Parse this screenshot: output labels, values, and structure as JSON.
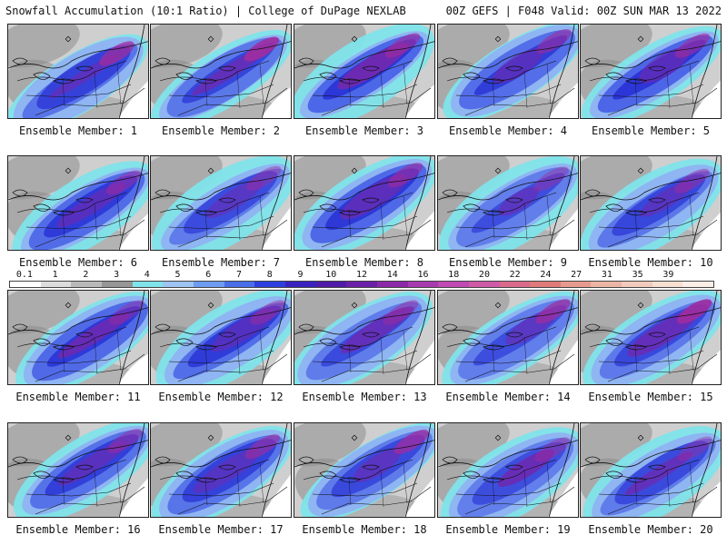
{
  "header": {
    "title_left": "Snowfall Accumulation (10:1 Ratio) | College of DuPage NEXLAB",
    "title_right": "00Z GEFS | F048 Valid: 00Z SUN MAR 13 2022"
  },
  "panels": [
    {
      "label": "Ensemble Member: 1"
    },
    {
      "label": "Ensemble Member: 2"
    },
    {
      "label": "Ensemble Member: 3"
    },
    {
      "label": "Ensemble Member: 4"
    },
    {
      "label": "Ensemble Member: 5"
    },
    {
      "label": "Ensemble Member: 6"
    },
    {
      "label": "Ensemble Member: 7"
    },
    {
      "label": "Ensemble Member: 8"
    },
    {
      "label": "Ensemble Member: 9"
    },
    {
      "label": "Ensemble Member: 10"
    },
    {
      "label": "Ensemble Member: 11"
    },
    {
      "label": "Ensemble Member: 12"
    },
    {
      "label": "Ensemble Member: 13"
    },
    {
      "label": "Ensemble Member: 14"
    },
    {
      "label": "Ensemble Member: 15"
    },
    {
      "label": "Ensemble Member: 16"
    },
    {
      "label": "Ensemble Member: 17"
    },
    {
      "label": "Ensemble Member: 18"
    },
    {
      "label": "Ensemble Member: 19"
    },
    {
      "label": "Ensemble Member: 20"
    }
  ],
  "colorbar": {
    "labels": [
      "0.1",
      "1",
      "2",
      "3",
      "4",
      "5",
      "6",
      "7",
      "8",
      "9",
      "10",
      "12",
      "14",
      "16",
      "18",
      "20",
      "22",
      "24",
      "27",
      "31",
      "35",
      "39"
    ],
    "colors": [
      "#ffffff",
      "#dcdcdc",
      "#b9b9b9",
      "#969696",
      "#7fe3ea",
      "#9ec4f4",
      "#6e9cf0",
      "#4a6ee8",
      "#2e3fe0",
      "#3a22c0",
      "#4e1ca8",
      "#6a20a8",
      "#8a2aa8",
      "#a63aae",
      "#c04ab4",
      "#cf5aa6",
      "#d96a8c",
      "#e07a7a",
      "#e69a8e",
      "#edb5a6",
      "#f2cbbd",
      "#f7dfd2",
      "#fbeee6"
    ]
  },
  "colors": {
    "light_gray": "#cfcfcf",
    "mid_gray": "#a6a6a6",
    "dark_gray": "#8a8a8a",
    "cyan": "#7fe3ea",
    "light_blue": "#8fb2f2",
    "blue": "#4a63e6",
    "dark_blue": "#2b35d6",
    "purple": "#6c2ab2",
    "magenta": "#a02c9e"
  }
}
